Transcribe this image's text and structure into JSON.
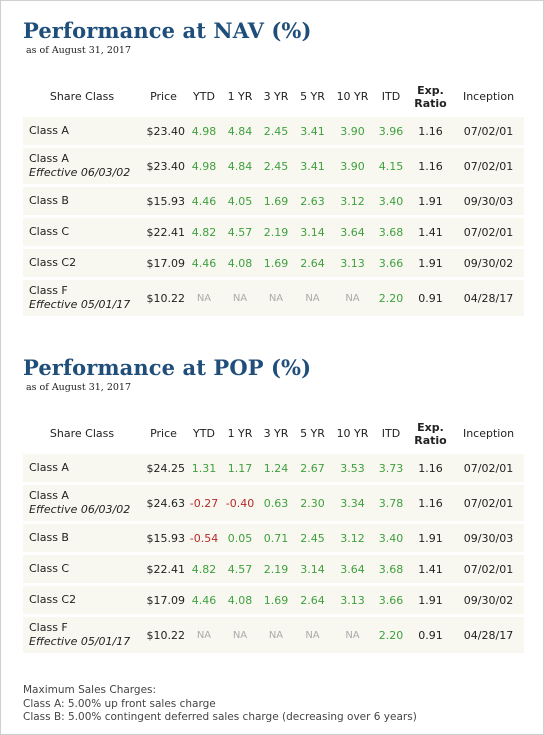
{
  "sections": [
    {
      "title": "Performance at NAV (%)",
      "as_of": "as of August 31, 2017",
      "headers": [
        "Share Class",
        "Price",
        "YTD",
        "1 YR",
        "3 YR",
        "5 YR",
        "10 YR",
        "ITD",
        "Exp. Ratio",
        "Inception"
      ],
      "rows": [
        {
          "cls": "Class A",
          "eff": "",
          "price": "$23.40",
          "ytd": "4.98",
          "y1": "4.84",
          "y3": "2.45",
          "y5": "3.41",
          "y10": "3.90",
          "itd": "3.96",
          "exp": "1.16",
          "inception": "07/02/01"
        },
        {
          "cls": "Class A",
          "eff": "Effective 06/03/02",
          "price": "$23.40",
          "ytd": "4.98",
          "y1": "4.84",
          "y3": "2.45",
          "y5": "3.41",
          "y10": "3.90",
          "itd": "4.15",
          "exp": "1.16",
          "inception": "07/02/01"
        },
        {
          "cls": "Class B",
          "eff": "",
          "price": "$15.93",
          "ytd": "4.46",
          "y1": "4.05",
          "y3": "1.69",
          "y5": "2.63",
          "y10": "3.12",
          "itd": "3.40",
          "exp": "1.91",
          "inception": "09/30/03"
        },
        {
          "cls": "Class C",
          "eff": "",
          "price": "$22.41",
          "ytd": "4.82",
          "y1": "4.57",
          "y3": "2.19",
          "y5": "3.14",
          "y10": "3.64",
          "itd": "3.68",
          "exp": "1.41",
          "inception": "07/02/01"
        },
        {
          "cls": "Class C2",
          "eff": "",
          "price": "$17.09",
          "ytd": "4.46",
          "y1": "4.08",
          "y3": "1.69",
          "y5": "2.64",
          "y10": "3.13",
          "itd": "3.66",
          "exp": "1.91",
          "inception": "09/30/02"
        },
        {
          "cls": "Class F",
          "eff": "Effective 05/01/17",
          "price": "$10.22",
          "ytd": "NA",
          "y1": "NA",
          "y3": "NA",
          "y5": "NA",
          "y10": "NA",
          "itd": "2.20",
          "exp": "0.91",
          "inception": "04/28/17"
        }
      ]
    },
    {
      "title": "Performance at POP (%)",
      "as_of": "as of August 31, 2017",
      "headers": [
        "Share Class",
        "Price",
        "YTD",
        "1 YR",
        "3 YR",
        "5 YR",
        "10 YR",
        "ITD",
        "Exp. Ratio",
        "Inception"
      ],
      "rows": [
        {
          "cls": "Class A",
          "eff": "",
          "price": "$24.25",
          "ytd": "1.31",
          "y1": "1.17",
          "y3": "1.24",
          "y5": "2.67",
          "y10": "3.53",
          "itd": "3.73",
          "exp": "1.16",
          "inception": "07/02/01"
        },
        {
          "cls": "Class A",
          "eff": "Effective 06/03/02",
          "price": "$24.63",
          "ytd": "-0.27",
          "y1": "-0.40",
          "y3": "0.63",
          "y5": "2.30",
          "y10": "3.34",
          "itd": "3.78",
          "exp": "1.16",
          "inception": "07/02/01"
        },
        {
          "cls": "Class B",
          "eff": "",
          "price": "$15.93",
          "ytd": "-0.54",
          "y1": "0.05",
          "y3": "0.71",
          "y5": "2.45",
          "y10": "3.12",
          "itd": "3.40",
          "exp": "1.91",
          "inception": "09/30/03"
        },
        {
          "cls": "Class C",
          "eff": "",
          "price": "$22.41",
          "ytd": "4.82",
          "y1": "4.57",
          "y3": "2.19",
          "y5": "3.14",
          "y10": "3.64",
          "itd": "3.68",
          "exp": "1.41",
          "inception": "07/02/01"
        },
        {
          "cls": "Class C2",
          "eff": "",
          "price": "$17.09",
          "ytd": "4.46",
          "y1": "4.08",
          "y3": "1.69",
          "y5": "2.64",
          "y10": "3.13",
          "itd": "3.66",
          "exp": "1.91",
          "inception": "09/30/02"
        },
        {
          "cls": "Class F",
          "eff": "Effective 05/01/17",
          "price": "$10.22",
          "ytd": "NA",
          "y1": "NA",
          "y3": "NA",
          "y5": "NA",
          "y10": "NA",
          "itd": "2.20",
          "exp": "0.91",
          "inception": "04/28/17"
        }
      ]
    }
  ],
  "footer": {
    "heading": "Maximum Sales Charges:",
    "line_a": "Class A: 5.00% up front sales charge",
    "line_b": "Class B: 5.00% contingent deferred sales charge (decreasing over 6 years)"
  },
  "colors": {
    "title": "#1f4e7a",
    "positive": "#3fa03f",
    "negative": "#b52a2a",
    "na": "#aaaaaa",
    "row_bg": "#f8f8f0"
  }
}
